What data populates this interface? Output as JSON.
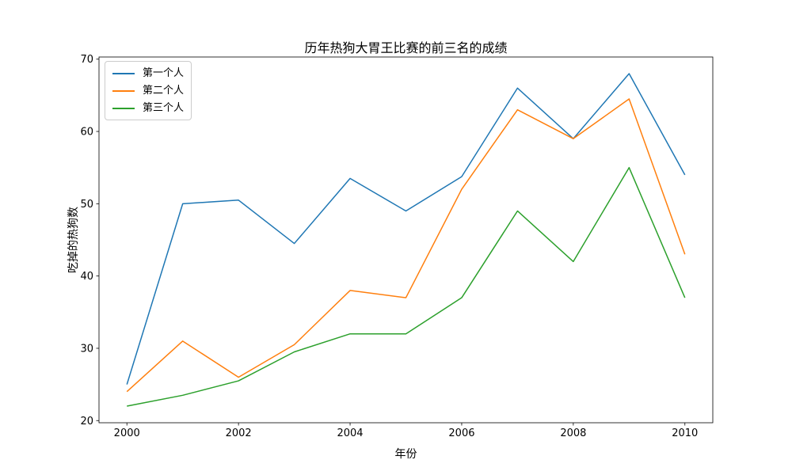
{
  "figure": {
    "background": "#ffffff",
    "text_color": "#000000",
    "spine_color": "#000000"
  },
  "chart_data": {
    "type": "line",
    "title": "历年热狗大胃王比赛的前三名的成绩",
    "xlabel": "年份",
    "ylabel": "吃掉的热狗数",
    "x": [
      2000,
      2001,
      2002,
      2003,
      2004,
      2005,
      2006,
      2007,
      2008,
      2009,
      2010
    ],
    "series": [
      {
        "name": "第一个人",
        "color": "#1f77b4",
        "values": [
          25,
          50,
          50.5,
          44.5,
          53.5,
          49,
          53.75,
          66,
          59,
          68,
          54
        ]
      },
      {
        "name": "第二个人",
        "color": "#ff7f0e",
        "values": [
          24,
          31,
          26,
          30.5,
          38,
          37,
          52,
          63,
          59,
          64.5,
          43
        ]
      },
      {
        "name": "第三个人",
        "color": "#2ca02c",
        "values": [
          22,
          23.5,
          25.5,
          29.5,
          32,
          32,
          37,
          49,
          42,
          55,
          37
        ]
      }
    ],
    "xticks": [
      2000,
      2002,
      2004,
      2006,
      2008,
      2010
    ],
    "yticks": [
      20,
      30,
      40,
      50,
      60,
      70
    ],
    "xlim": [
      1999.5,
      2010.5
    ],
    "ylim": [
      19.7,
      70.3
    ],
    "legend_position": "upper left",
    "grid": false,
    "line_width": 1.5
  }
}
